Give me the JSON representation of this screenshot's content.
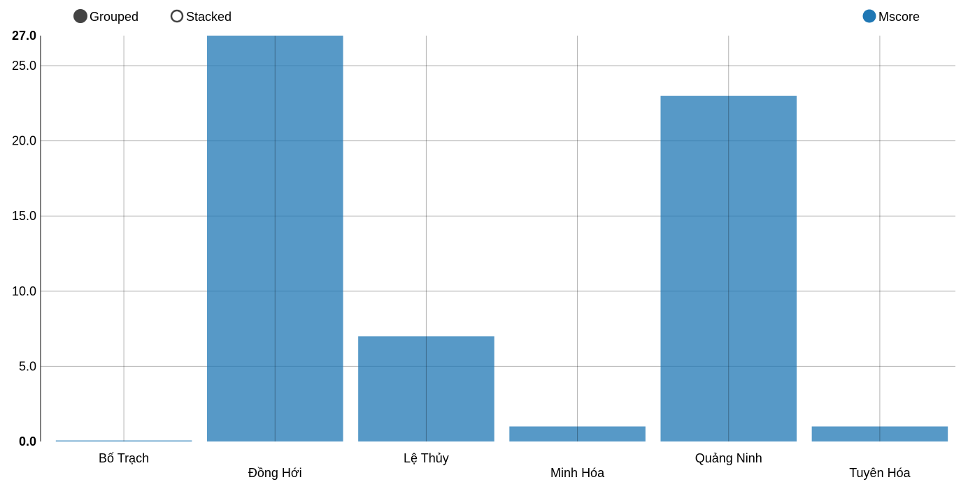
{
  "controls": {
    "grouped_label": "Grouped",
    "stacked_label": "Stacked"
  },
  "chart_data": {
    "type": "bar",
    "categories": [
      "Bố Trạch",
      "Đồng Hới",
      "Lệ Thủy",
      "Minh Hóa",
      "Quảng Ninh",
      "Tuyên Hóa"
    ],
    "series": [
      {
        "name": "Mscore",
        "values": [
          0.05,
          27,
          7,
          1,
          23,
          1
        ],
        "color": "#1f77b4"
      }
    ],
    "yticks": [
      "0.0",
      "5.0",
      "10.0",
      "15.0",
      "20.0",
      "25.0",
      "27.0"
    ],
    "ylim": [
      0,
      27
    ],
    "grid": true,
    "legend_position": "top-right",
    "title": "",
    "xlabel": "",
    "ylabel": ""
  }
}
